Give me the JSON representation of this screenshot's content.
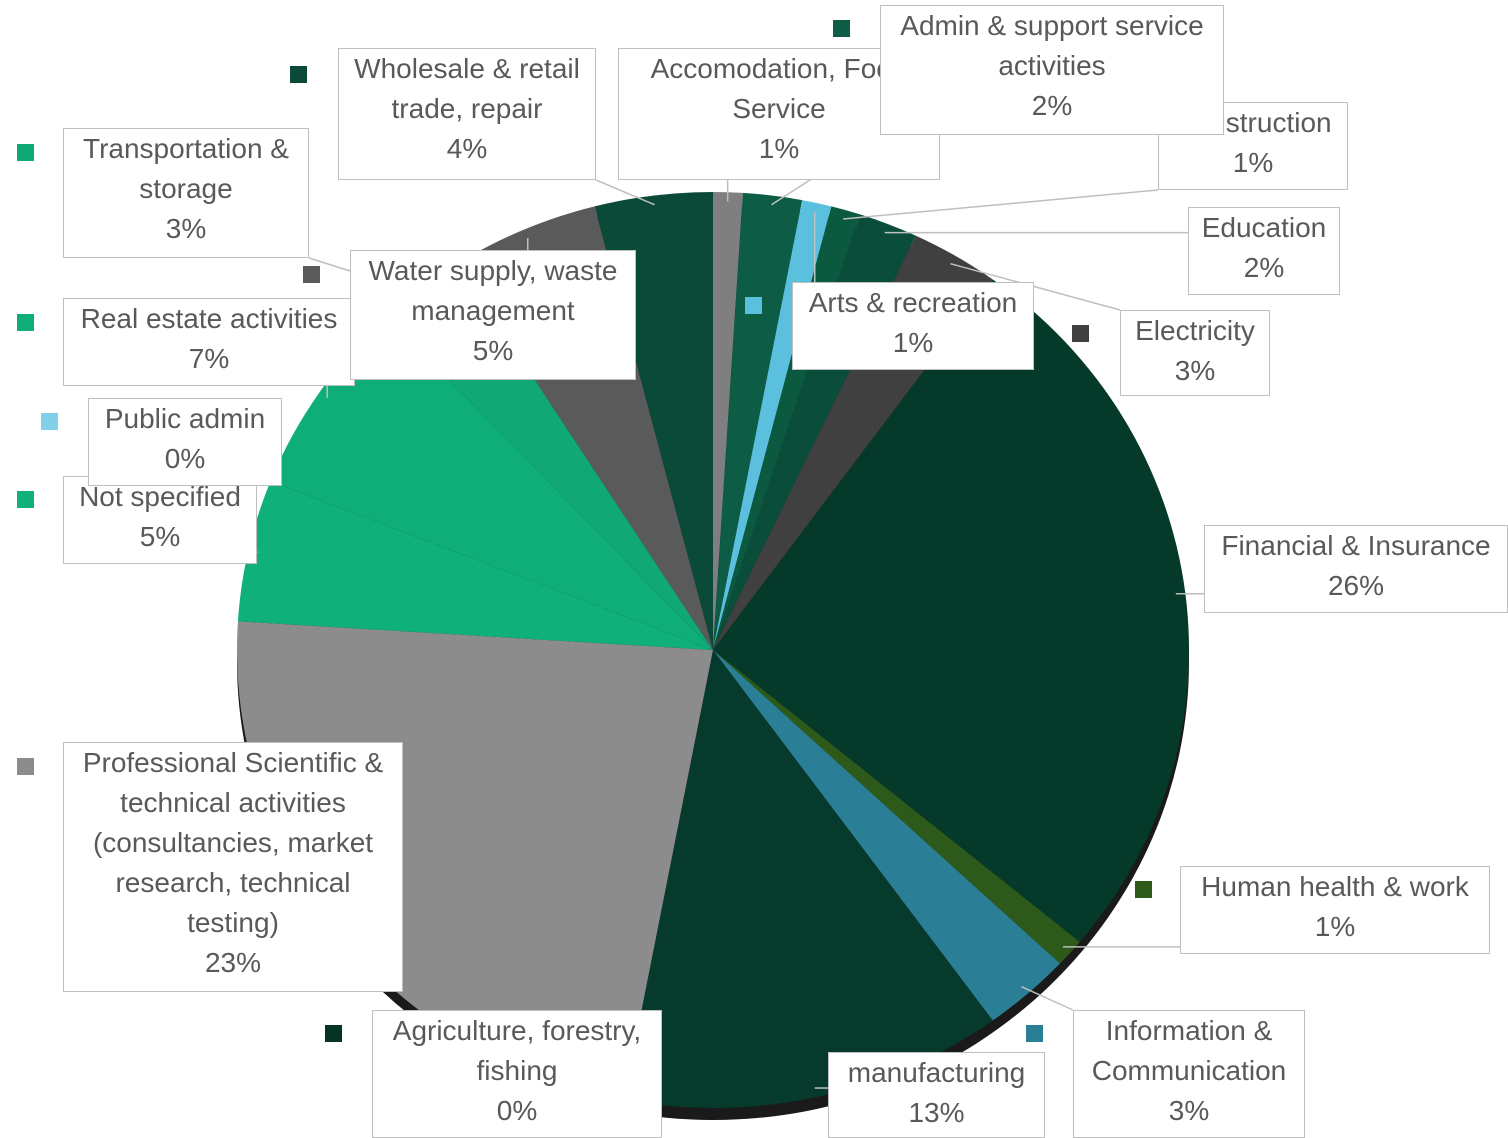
{
  "chart_data": {
    "type": "pie",
    "categories": [
      "Accomodation, Food Service",
      "Admin & support service activities",
      "Arts & recreation",
      "Construction",
      "Education",
      "Electricity",
      "Financial & Insurance",
      "Human health & work",
      "Information & Communication",
      "manufacturing",
      "Agriculture, forestry, fishing",
      "Professional Scientific & technical activities (consultancies, market research, technical testing)",
      "Not specified",
      "Public admin",
      "Real estate activities",
      "Transportation & storage",
      "Water supply, waste management",
      "Wholesale & retail trade, repair"
    ],
    "values": [
      1,
      2,
      1,
      1,
      2,
      3,
      26,
      1,
      3,
      13,
      0,
      23,
      5,
      0,
      7,
      3,
      5,
      4
    ],
    "value_labels": [
      "1%",
      "2%",
      "1%",
      "1%",
      "2%",
      "3%",
      "26%",
      "1%",
      "3%",
      "13%",
      "0%",
      "23%",
      "5%",
      "0%",
      "7%",
      "3%",
      "5%",
      "4%"
    ],
    "colors": [
      "#7f7f7f",
      "#0d5c45",
      "#5bc0de",
      "#0b5a40",
      "#0a4d3a",
      "#404040",
      "#05392a",
      "#2d5a1b",
      "#2a7f96",
      "#063a2c",
      "#053326",
      "#8c8c8c",
      "#10b07a",
      "#7fd0e8",
      "#0fae78",
      "#10a874",
      "#5a5a5a",
      "#0b4a38"
    ]
  }
}
